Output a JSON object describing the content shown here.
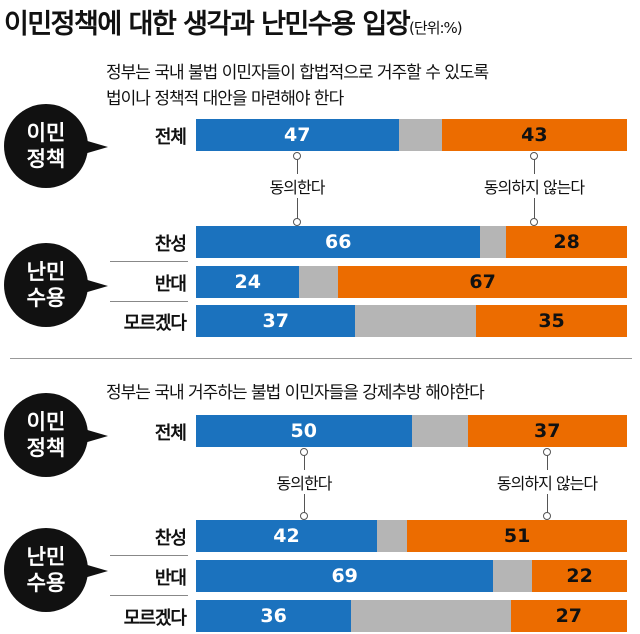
{
  "title": "이민정책에 대한 생각과 난민수용 입장",
  "unit": "(단위:%)",
  "colors": {
    "agree": "#1b72be",
    "neutral": "#b5b5b5",
    "disagree": "#ec6c00"
  },
  "chart_data": [
    {
      "type": "bar",
      "stacked": true,
      "question": [
        "정부는 국내 불법 이민자들이 합법적으로 거주할 수 있도록",
        "법이나 정책적 대안을 마련해야 한다"
      ],
      "group_labels": {
        "policy": [
          "이민",
          "정책"
        ],
        "refugee": [
          "난민",
          "수용"
        ]
      },
      "categories": [
        "전체",
        "찬성",
        "반대",
        "모르겠다"
      ],
      "series": [
        {
          "name": "동의한다",
          "values": [
            47,
            66,
            24,
            37
          ]
        },
        {
          "name": "동의하지 않는다",
          "values": [
            43,
            28,
            67,
            35
          ]
        }
      ]
    },
    {
      "type": "bar",
      "stacked": true,
      "question": [
        "정부는 국내 거주하는 불법 이민자들을 강제추방 해야한다"
      ],
      "group_labels": {
        "policy": [
          "이민",
          "정책"
        ],
        "refugee": [
          "난민",
          "수용"
        ]
      },
      "categories": [
        "전체",
        "찬성",
        "반대",
        "모르겠다"
      ],
      "series": [
        {
          "name": "동의한다",
          "values": [
            50,
            42,
            69,
            36
          ]
        },
        {
          "name": "동의하지 않는다",
          "values": [
            37,
            51,
            22,
            27
          ]
        }
      ]
    }
  ]
}
